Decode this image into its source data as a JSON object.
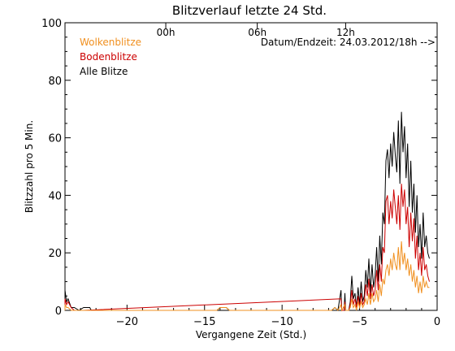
{
  "chart_data": {
    "type": "line",
    "title": "Blitzverlauf letzte 24 Std.",
    "xlabel": "Vergangene Zeit (Std.)",
    "ylabel": "Blitzzahl pro 5 Min.",
    "xlim": [
      -24,
      0
    ],
    "ylim": [
      0,
      100
    ],
    "xticks": [
      -20,
      -15,
      -10,
      -5,
      0
    ],
    "yticks": [
      0,
      20,
      40,
      60,
      80,
      100
    ],
    "xtick_labels": [
      "−20",
      "−15",
      "−10",
      "−5",
      "0"
    ],
    "ytick_labels": [
      "0",
      "20",
      "40",
      "60",
      "80",
      "100"
    ],
    "top_axis": {
      "ticks": [
        -17.5,
        -11.6,
        -5.9
      ],
      "labels": [
        "00h",
        "06h",
        "12h"
      ]
    },
    "annotation": "Datum/Endzeit: 24.03.2012/18h -->",
    "grid": false,
    "legend_position": "top-left",
    "series": [
      {
        "name": "Alle Blitze",
        "color": "#000000",
        "points": [
          [
            -24.0,
            7
          ],
          [
            -23.9,
            3
          ],
          [
            -23.8,
            4
          ],
          [
            -23.6,
            1
          ],
          [
            -23.4,
            1
          ],
          [
            -23.1,
            0
          ],
          [
            -22.8,
            1
          ],
          [
            -22.4,
            1
          ],
          [
            -22.3,
            0
          ],
          [
            -14.2,
            0
          ],
          [
            -14.0,
            1
          ],
          [
            -13.6,
            1
          ],
          [
            -13.4,
            0
          ],
          [
            -6.8,
            0
          ],
          [
            -6.6,
            1
          ],
          [
            -6.4,
            0
          ],
          [
            -6.2,
            7
          ],
          [
            -6.15,
            0
          ],
          [
            -6.0,
            0
          ],
          [
            -5.95,
            6
          ],
          [
            -5.9,
            0
          ],
          [
            -5.7,
            0
          ],
          [
            -5.6,
            3
          ],
          [
            -5.5,
            12
          ],
          [
            -5.4,
            4
          ],
          [
            -5.3,
            6
          ],
          [
            -5.2,
            1
          ],
          [
            -5.1,
            8
          ],
          [
            -5.0,
            2
          ],
          [
            -4.9,
            10
          ],
          [
            -4.8,
            3
          ],
          [
            -4.7,
            5
          ],
          [
            -4.6,
            14
          ],
          [
            -4.5,
            8
          ],
          [
            -4.4,
            18
          ],
          [
            -4.3,
            6
          ],
          [
            -4.2,
            16
          ],
          [
            -4.1,
            8
          ],
          [
            -4.0,
            12
          ],
          [
            -3.9,
            22
          ],
          [
            -3.8,
            10
          ],
          [
            -3.7,
            26
          ],
          [
            -3.6,
            16
          ],
          [
            -3.5,
            34
          ],
          [
            -3.4,
            30
          ],
          [
            -3.3,
            52
          ],
          [
            -3.2,
            56
          ],
          [
            -3.1,
            46
          ],
          [
            -3.0,
            58
          ],
          [
            -2.9,
            50
          ],
          [
            -2.8,
            62
          ],
          [
            -2.7,
            54
          ],
          [
            -2.6,
            48
          ],
          [
            -2.5,
            66
          ],
          [
            -2.4,
            44
          ],
          [
            -2.3,
            69
          ],
          [
            -2.2,
            55
          ],
          [
            -2.1,
            64
          ],
          [
            -2.0,
            46
          ],
          [
            -1.9,
            58
          ],
          [
            -1.8,
            36
          ],
          [
            -1.7,
            52
          ],
          [
            -1.6,
            34
          ],
          [
            -1.5,
            44
          ],
          [
            -1.4,
            27
          ],
          [
            -1.3,
            40
          ],
          [
            -1.2,
            22
          ],
          [
            -1.1,
            30
          ],
          [
            -1.0,
            18
          ],
          [
            -0.9,
            34
          ],
          [
            -0.8,
            22
          ],
          [
            -0.7,
            26
          ],
          [
            -0.6,
            20
          ],
          [
            -0.5,
            18
          ]
        ]
      },
      {
        "name": "Bodenblitze",
        "color": "#cc0000",
        "points": [
          [
            -24.0,
            4
          ],
          [
            -23.9,
            2
          ],
          [
            -23.8,
            3
          ],
          [
            -23.6,
            1
          ],
          [
            -23.4,
            0
          ],
          [
            -22.8,
            0
          ],
          [
            -6.2,
            4
          ],
          [
            -6.15,
            0
          ],
          [
            -6.0,
            0
          ],
          [
            -5.95,
            3
          ],
          [
            -5.9,
            0
          ],
          [
            -5.7,
            0
          ],
          [
            -5.6,
            2
          ],
          [
            -5.5,
            7
          ],
          [
            -5.4,
            2
          ],
          [
            -5.3,
            4
          ],
          [
            -5.2,
            1
          ],
          [
            -5.1,
            5
          ],
          [
            -5.0,
            1
          ],
          [
            -4.9,
            6
          ],
          [
            -4.8,
            2
          ],
          [
            -4.7,
            3
          ],
          [
            -4.6,
            9
          ],
          [
            -4.5,
            5
          ],
          [
            -4.4,
            11
          ],
          [
            -4.3,
            4
          ],
          [
            -4.2,
            9
          ],
          [
            -4.1,
            5
          ],
          [
            -4.0,
            7
          ],
          [
            -3.9,
            14
          ],
          [
            -3.8,
            7
          ],
          [
            -3.7,
            16
          ],
          [
            -3.6,
            10
          ],
          [
            -3.5,
            22
          ],
          [
            -3.4,
            20
          ],
          [
            -3.3,
            38
          ],
          [
            -3.2,
            40
          ],
          [
            -3.1,
            30
          ],
          [
            -3.0,
            38
          ],
          [
            -2.9,
            32
          ],
          [
            -2.8,
            42
          ],
          [
            -2.7,
            36
          ],
          [
            -2.6,
            30
          ],
          [
            -2.5,
            40
          ],
          [
            -2.4,
            28
          ],
          [
            -2.3,
            44
          ],
          [
            -2.2,
            36
          ],
          [
            -2.1,
            42
          ],
          [
            -2.0,
            30
          ],
          [
            -1.9,
            36
          ],
          [
            -1.8,
            22
          ],
          [
            -1.7,
            34
          ],
          [
            -1.6,
            24
          ],
          [
            -1.5,
            32
          ],
          [
            -1.4,
            18
          ],
          [
            -1.3,
            26
          ],
          [
            -1.2,
            14
          ],
          [
            -1.1,
            20
          ],
          [
            -1.0,
            12
          ],
          [
            -0.9,
            22
          ],
          [
            -0.8,
            14
          ],
          [
            -0.7,
            16
          ],
          [
            -0.6,
            12
          ],
          [
            -0.5,
            10
          ]
        ]
      },
      {
        "name": "Wolkenblitze",
        "color": "#f09020",
        "points": [
          [
            -24.0,
            2
          ],
          [
            -23.9,
            1
          ],
          [
            -23.8,
            1
          ],
          [
            -23.6,
            0
          ],
          [
            -22.8,
            0
          ],
          [
            -14.2,
            0
          ],
          [
            -14.0,
            1
          ],
          [
            -13.6,
            1
          ],
          [
            -13.4,
            0
          ],
          [
            -6.8,
            0
          ],
          [
            -6.6,
            1
          ],
          [
            -6.4,
            0
          ],
          [
            -6.2,
            2
          ],
          [
            -6.15,
            0
          ],
          [
            -5.95,
            2
          ],
          [
            -5.9,
            0
          ],
          [
            -5.7,
            0
          ],
          [
            -5.6,
            1
          ],
          [
            -5.5,
            4
          ],
          [
            -5.4,
            1
          ],
          [
            -5.3,
            2
          ],
          [
            -5.2,
            0
          ],
          [
            -5.1,
            3
          ],
          [
            -5.0,
            1
          ],
          [
            -4.9,
            3
          ],
          [
            -4.8,
            1
          ],
          [
            -4.7,
            2
          ],
          [
            -4.6,
            4
          ],
          [
            -4.5,
            2
          ],
          [
            -4.4,
            6
          ],
          [
            -4.3,
            2
          ],
          [
            -4.2,
            6
          ],
          [
            -4.1,
            3
          ],
          [
            -4.0,
            4
          ],
          [
            -3.9,
            7
          ],
          [
            -3.8,
            3
          ],
          [
            -3.7,
            9
          ],
          [
            -3.6,
            5
          ],
          [
            -3.5,
            11
          ],
          [
            -3.4,
            9
          ],
          [
            -3.3,
            14
          ],
          [
            -3.2,
            16
          ],
          [
            -3.1,
            12
          ],
          [
            -3.0,
            18
          ],
          [
            -2.9,
            14
          ],
          [
            -2.8,
            20
          ],
          [
            -2.7,
            16
          ],
          [
            -2.6,
            14
          ],
          [
            -2.5,
            22
          ],
          [
            -2.4,
            14
          ],
          [
            -2.3,
            24
          ],
          [
            -2.2,
            16
          ],
          [
            -2.1,
            20
          ],
          [
            -2.0,
            14
          ],
          [
            -1.9,
            18
          ],
          [
            -1.8,
            12
          ],
          [
            -1.7,
            16
          ],
          [
            -1.6,
            10
          ],
          [
            -1.5,
            14
          ],
          [
            -1.4,
            8
          ],
          [
            -1.3,
            12
          ],
          [
            -1.2,
            6
          ],
          [
            -1.1,
            10
          ],
          [
            -1.0,
            6
          ],
          [
            -0.9,
            12
          ],
          [
            -0.8,
            8
          ],
          [
            -0.7,
            10
          ],
          [
            -0.6,
            8
          ],
          [
            -0.5,
            8
          ]
        ]
      }
    ]
  }
}
